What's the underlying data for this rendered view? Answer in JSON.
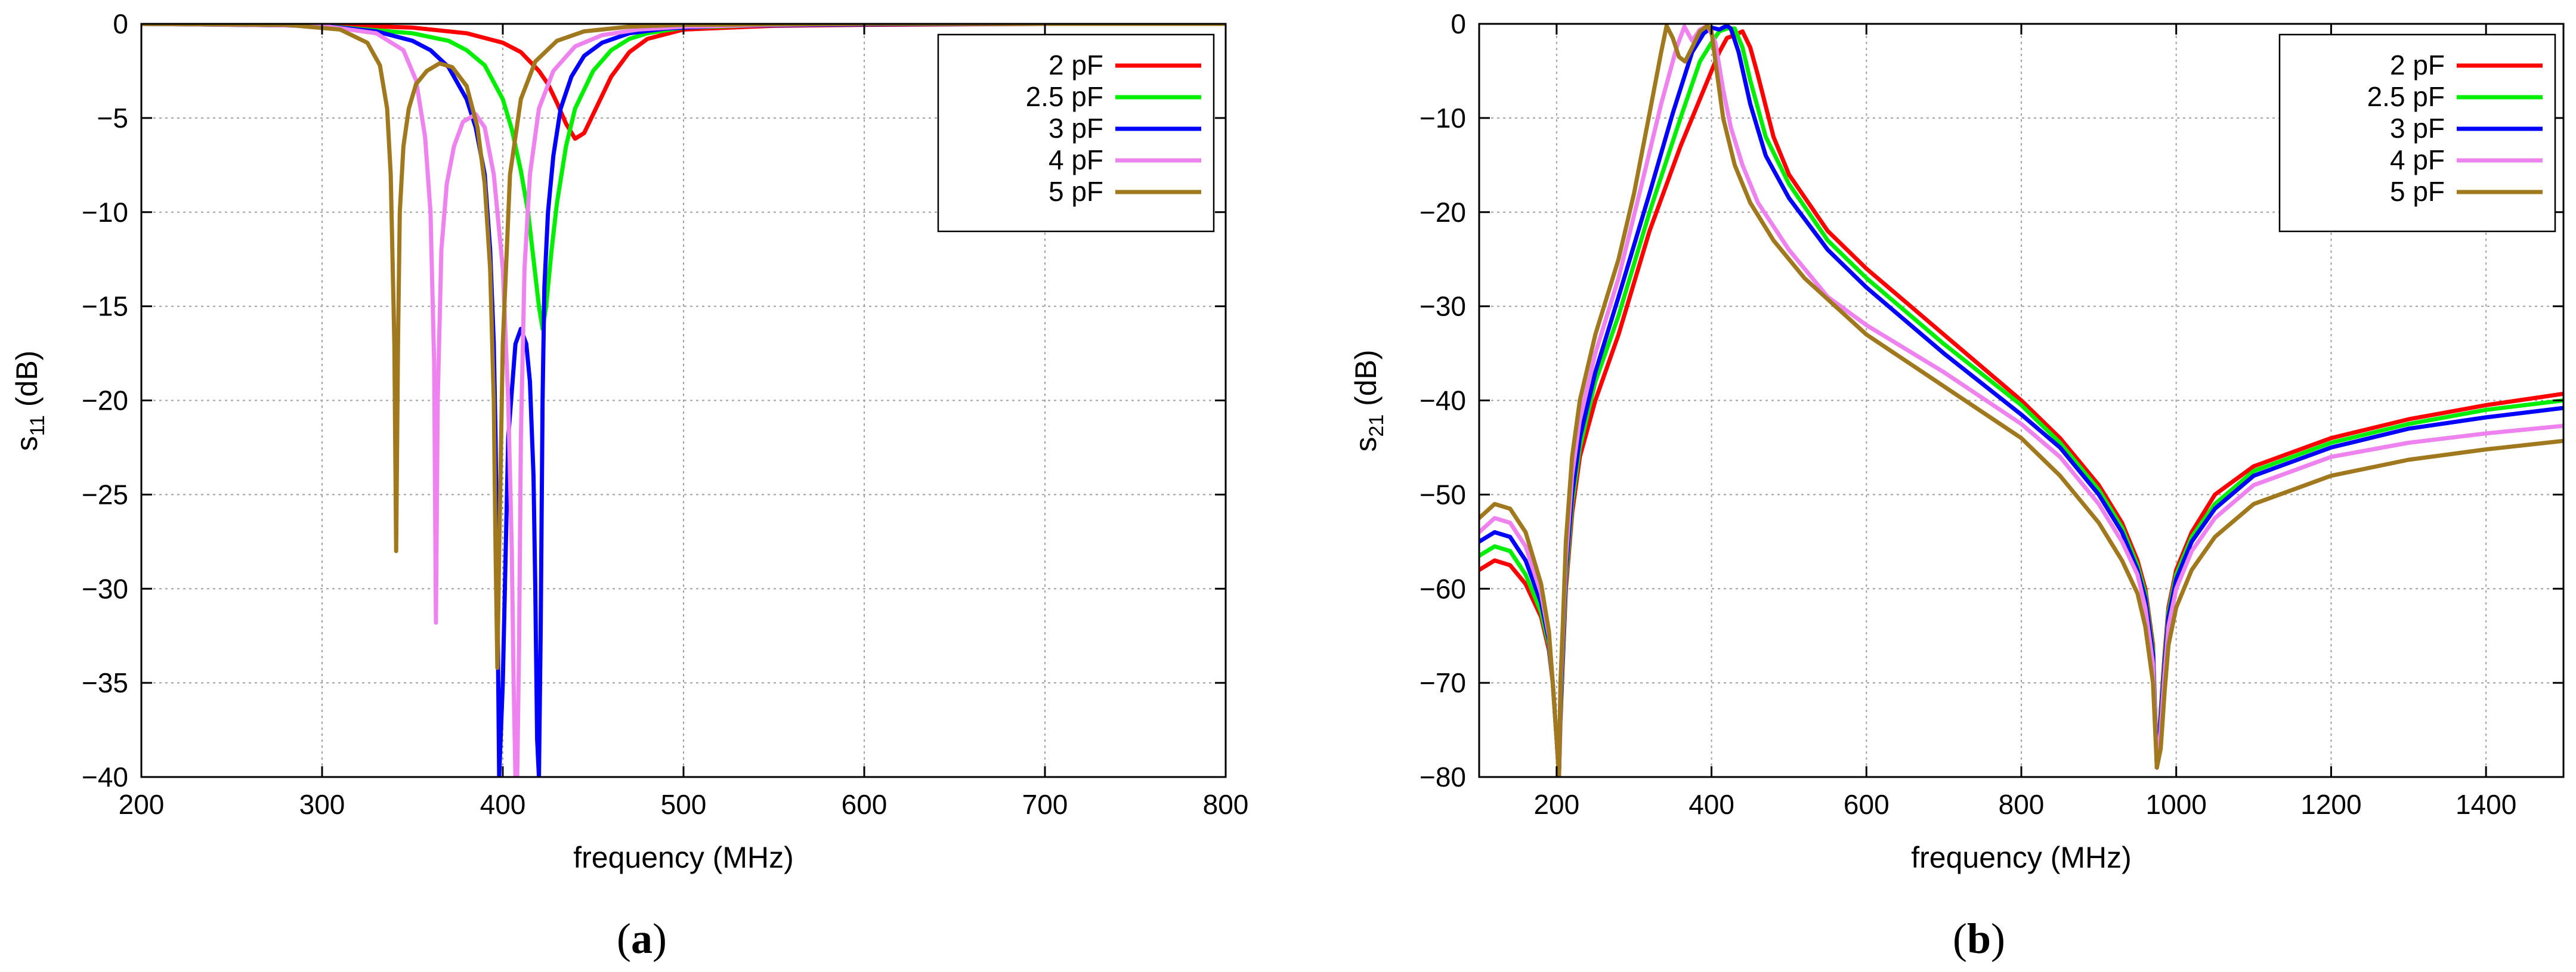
{
  "panels": [
    {
      "caption": "a",
      "ylabel_main": "s",
      "ylabel_sub": "11",
      "ylabel_unit": " (dB)",
      "xlabel": "frequency  (MHz)"
    },
    {
      "caption": "b",
      "ylabel_main": "s",
      "ylabel_sub": "21",
      "ylabel_unit": " (dB)",
      "xlabel": "frequency  (MHz)"
    }
  ],
  "chart_data": [
    {
      "type": "line",
      "xlabel": "frequency  (MHz)",
      "ylabel": "s11 (dB)",
      "xlim": [
        200,
        800
      ],
      "ylim": [
        -40,
        0
      ],
      "xticks": [
        200,
        300,
        400,
        500,
        600,
        700,
        800
      ],
      "yticks": [
        0,
        -5,
        -10,
        -15,
        -20,
        -25,
        -30,
        -35,
        -40
      ],
      "grid": true,
      "legend_position": "top-right",
      "series": [
        {
          "name": "2 pF",
          "color": "#ff0000",
          "x": [
            200,
            300,
            350,
            380,
            400,
            410,
            420,
            425,
            430,
            435,
            440,
            445,
            450,
            460,
            470,
            480,
            500,
            550,
            600,
            700,
            800
          ],
          "y": [
            0,
            -0.05,
            -0.2,
            -0.5,
            -1.0,
            -1.5,
            -2.5,
            -3.2,
            -4.2,
            -5.3,
            -6.1,
            -5.8,
            -4.8,
            -2.8,
            -1.5,
            -0.8,
            -0.3,
            -0.1,
            -0.05,
            0,
            0
          ]
        },
        {
          "name": "2.5 pF",
          "color": "#00ee00",
          "x": [
            200,
            300,
            350,
            370,
            380,
            390,
            400,
            405,
            410,
            414,
            417,
            420,
            422,
            424,
            427,
            430,
            435,
            440,
            450,
            460,
            470,
            480,
            500,
            550,
            600,
            700,
            800
          ],
          "y": [
            0,
            -0.1,
            -0.5,
            -0.9,
            -1.4,
            -2.2,
            -4.0,
            -5.6,
            -7.8,
            -10.0,
            -12.5,
            -15.0,
            -16.2,
            -15.0,
            -12.0,
            -9.5,
            -6.5,
            -4.5,
            -2.5,
            -1.4,
            -0.8,
            -0.5,
            -0.2,
            -0.05,
            0,
            0,
            0
          ]
        },
        {
          "name": "3 pF",
          "color": "#0000ff",
          "x": [
            200,
            300,
            330,
            350,
            360,
            370,
            380,
            385,
            390,
            393,
            395,
            396,
            397,
            398,
            400,
            403,
            407,
            410,
            413,
            415,
            417,
            418,
            419,
            420,
            421,
            422,
            423,
            425,
            428,
            432,
            438,
            445,
            455,
            470,
            490,
            520,
            600,
            700,
            800
          ],
          "y": [
            0,
            -0.1,
            -0.4,
            -0.9,
            -1.4,
            -2.3,
            -4.0,
            -5.5,
            -8.0,
            -12.0,
            -17.0,
            -22.0,
            -30.0,
            -40.0,
            -35.0,
            -22.0,
            -17.0,
            -16.2,
            -17.0,
            -19.0,
            -24.0,
            -30.0,
            -38.0,
            -40.0,
            -32.0,
            -20.0,
            -14.0,
            -10.0,
            -7.0,
            -4.5,
            -2.8,
            -1.7,
            -1.0,
            -0.5,
            -0.25,
            -0.1,
            -0.03,
            0,
            0
          ]
        },
        {
          "name": "4 pF",
          "color": "#ee82ee",
          "x": [
            200,
            300,
            330,
            345,
            352,
            357,
            360,
            362,
            363,
            364,
            366,
            369,
            373,
            378,
            385,
            390,
            395,
            400,
            403,
            405,
            406,
            407,
            408,
            409,
            410,
            412,
            415,
            420,
            428,
            440,
            455,
            475,
            500,
            550,
            600,
            700,
            800
          ],
          "y": [
            0,
            -0.1,
            -0.5,
            -1.4,
            -3.0,
            -6.0,
            -10.0,
            -18.0,
            -31.8,
            -20.0,
            -12.0,
            -8.5,
            -6.5,
            -5.2,
            -4.8,
            -5.5,
            -8.0,
            -13.0,
            -20.0,
            -28.0,
            -35.0,
            -40.0,
            -40.0,
            -33.0,
            -22.0,
            -13.0,
            -8.0,
            -4.5,
            -2.5,
            -1.2,
            -0.6,
            -0.3,
            -0.15,
            -0.05,
            0,
            0,
            0
          ]
        },
        {
          "name": "5 pF",
          "color": "#a0781e",
          "x": [
            200,
            280,
            310,
            325,
            332,
            336,
            338,
            340,
            341,
            342,
            343,
            345,
            348,
            352,
            358,
            365,
            372,
            380,
            386,
            390,
            393,
            395,
            396,
            397,
            398,
            400,
            404,
            410,
            418,
            430,
            445,
            470,
            500,
            600,
            700,
            800
          ],
          "y": [
            0,
            -0.05,
            -0.3,
            -1.0,
            -2.2,
            -4.5,
            -8.0,
            -17.0,
            -28.0,
            -17.0,
            -10.0,
            -6.5,
            -4.5,
            -3.2,
            -2.5,
            -2.1,
            -2.3,
            -3.3,
            -5.5,
            -8.5,
            -13.0,
            -20.0,
            -28.0,
            -34.2,
            -28.0,
            -17.0,
            -8.0,
            -4.0,
            -2.0,
            -0.9,
            -0.4,
            -0.15,
            -0.05,
            0,
            0,
            0
          ]
        }
      ]
    },
    {
      "type": "line",
      "xlabel": "frequency  (MHz)",
      "ylabel": "s21 (dB)",
      "xlim": [
        100,
        1500
      ],
      "ylim": [
        -80,
        0
      ],
      "xticks": [
        200,
        400,
        600,
        800,
        1000,
        1200,
        1400
      ],
      "yticks": [
        0,
        -10,
        -20,
        -30,
        -40,
        -50,
        -60,
        -70,
        -80
      ],
      "grid": true,
      "legend_position": "top-right",
      "series": [
        {
          "name": "2 pF",
          "color": "#ff0000",
          "x": [
            100,
            120,
            140,
            160,
            180,
            190,
            195,
            200,
            203,
            205,
            208,
            212,
            220,
            230,
            250,
            280,
            320,
            360,
            390,
            410,
            420,
            430,
            440,
            450,
            460,
            480,
            500,
            550,
            600,
            700,
            800,
            850,
            900,
            930,
            950,
            960,
            970,
            975,
            980,
            985,
            990,
            1000,
            1020,
            1050,
            1100,
            1200,
            1300,
            1400,
            1500
          ],
          "y": [
            -58,
            -57,
            -57.5,
            -59.5,
            -63,
            -66.5,
            -70,
            -76,
            -80,
            -74,
            -68,
            -60,
            -52,
            -46,
            -40,
            -33,
            -22,
            -13,
            -7,
            -3,
            -1.5,
            -1.2,
            -0.8,
            -2.5,
            -5.5,
            -12,
            -16,
            -22,
            -26,
            -33,
            -40,
            -44,
            -49,
            -53,
            -57,
            -60,
            -66,
            -79,
            -73,
            -67,
            -62,
            -58,
            -54,
            -50,
            -47,
            -44,
            -42,
            -40.5,
            -39.3
          ]
        },
        {
          "name": "2.5 pF",
          "color": "#00ee00",
          "x": [
            100,
            120,
            140,
            160,
            180,
            190,
            195,
            200,
            203,
            205,
            208,
            212,
            220,
            230,
            250,
            280,
            320,
            360,
            385,
            400,
            410,
            420,
            430,
            440,
            450,
            470,
            500,
            550,
            600,
            700,
            800,
            850,
            900,
            930,
            950,
            960,
            970,
            975,
            980,
            985,
            990,
            1000,
            1020,
            1050,
            1100,
            1200,
            1300,
            1400,
            1500
          ],
          "y": [
            -56.5,
            -55.5,
            -56,
            -58.5,
            -62.5,
            -66,
            -70,
            -76,
            -80,
            -73,
            -67,
            -59,
            -51,
            -45,
            -38,
            -31,
            -20,
            -10,
            -4,
            -2,
            -0.8,
            -0.5,
            -0.5,
            -2.5,
            -6,
            -12,
            -17,
            -23,
            -27,
            -34,
            -40.5,
            -44.5,
            -49.5,
            -53.5,
            -57.5,
            -60.5,
            -66.5,
            -79,
            -73.5,
            -67.5,
            -62.5,
            -58.5,
            -54.5,
            -51,
            -47.5,
            -44.5,
            -42.5,
            -41,
            -40
          ]
        },
        {
          "name": "3 pF",
          "color": "#0000ff",
          "x": [
            100,
            120,
            140,
            160,
            180,
            190,
            195,
            200,
            203,
            205,
            208,
            212,
            220,
            230,
            250,
            280,
            320,
            350,
            375,
            390,
            400,
            410,
            420,
            425,
            435,
            450,
            470,
            500,
            550,
            600,
            700,
            800,
            850,
            900,
            930,
            950,
            960,
            970,
            975,
            980,
            985,
            990,
            1000,
            1020,
            1050,
            1100,
            1200,
            1300,
            1400,
            1500
          ],
          "y": [
            -55,
            -54,
            -54.5,
            -57,
            -61.5,
            -65.5,
            -70,
            -76,
            -80,
            -72,
            -66,
            -58,
            -50,
            -44,
            -37,
            -29,
            -18,
            -9.5,
            -3,
            -1,
            -0.4,
            -0.6,
            -0.2,
            -0.5,
            -3,
            -8.5,
            -14,
            -18.5,
            -24,
            -28,
            -35,
            -41.5,
            -45,
            -50,
            -54,
            -58,
            -61,
            -67,
            -79,
            -74,
            -68,
            -63,
            -59,
            -55,
            -51.5,
            -48,
            -45,
            -43,
            -41.8,
            -40.8
          ]
        },
        {
          "name": "4 pF",
          "color": "#ee82ee",
          "x": [
            100,
            120,
            140,
            160,
            180,
            190,
            195,
            200,
            203,
            205,
            208,
            212,
            220,
            230,
            250,
            280,
            310,
            335,
            355,
            365,
            375,
            385,
            395,
            405,
            415,
            425,
            440,
            460,
            500,
            550,
            600,
            700,
            800,
            850,
            900,
            930,
            950,
            960,
            970,
            975,
            980,
            985,
            990,
            1000,
            1020,
            1050,
            1100,
            1200,
            1300,
            1400,
            1500
          ],
          "y": [
            -54,
            -52.5,
            -53,
            -55.5,
            -60.5,
            -65,
            -70,
            -76,
            -80,
            -71,
            -65,
            -57,
            -48,
            -42,
            -35,
            -27,
            -17,
            -8.5,
            -2.5,
            -0.3,
            -1.8,
            -0.6,
            -0.2,
            -2,
            -7,
            -11,
            -15,
            -19,
            -24,
            -29,
            -32,
            -37,
            -42.5,
            -46,
            -51,
            -55,
            -58.5,
            -62,
            -68,
            -79,
            -75,
            -69,
            -64,
            -60,
            -56,
            -52.5,
            -49,
            -46,
            -44.5,
            -43.5,
            -42.7
          ]
        },
        {
          "name": "5 pF",
          "color": "#a0781e",
          "x": [
            100,
            120,
            140,
            160,
            180,
            190,
            195,
            200,
            203,
            205,
            208,
            212,
            220,
            230,
            250,
            280,
            300,
            320,
            335,
            342,
            350,
            358,
            366,
            375,
            385,
            395,
            400,
            405,
            415,
            430,
            450,
            480,
            520,
            600,
            700,
            800,
            850,
            900,
            930,
            950,
            960,
            970,
            975,
            980,
            985,
            990,
            1000,
            1020,
            1050,
            1100,
            1200,
            1300,
            1400,
            1500
          ],
          "y": [
            -52.5,
            -51,
            -51.5,
            -54,
            -59.5,
            -64.5,
            -70,
            -76,
            -80,
            -70,
            -64,
            -55,
            -46,
            -40,
            -33,
            -25,
            -18,
            -9.5,
            -3,
            -0.2,
            -1.5,
            -3.5,
            -4,
            -2.5,
            -0.8,
            -0.2,
            -0.8,
            -4,
            -10,
            -15,
            -19,
            -23,
            -27,
            -33,
            -38.5,
            -44,
            -48,
            -53,
            -57,
            -60.5,
            -64,
            -70,
            -79,
            -77,
            -71,
            -66,
            -62,
            -58,
            -54.5,
            -51,
            -48,
            -46.3,
            -45.2,
            -44.3
          ]
        }
      ]
    }
  ]
}
